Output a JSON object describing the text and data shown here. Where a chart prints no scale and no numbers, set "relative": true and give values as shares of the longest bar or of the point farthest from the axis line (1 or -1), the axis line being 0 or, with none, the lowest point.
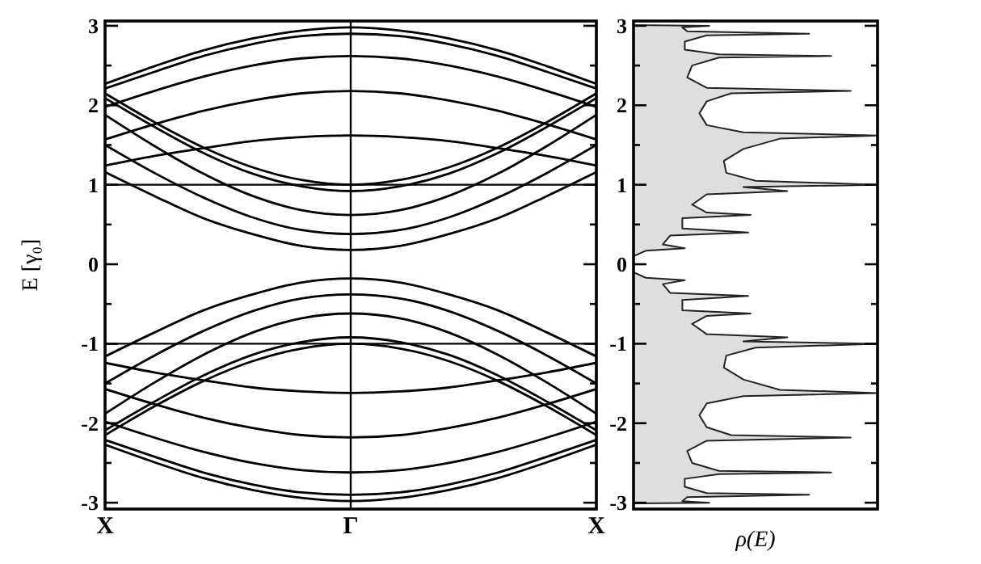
{
  "chart_data": [
    {
      "type": "line",
      "ylabel": "E [γ₀]",
      "ylim": [
        -3.08,
        3.06
      ],
      "categories": [
        "X",
        null,
        null,
        null,
        null,
        "Γ",
        null,
        null,
        null,
        null,
        "X"
      ],
      "yticks": [
        -3,
        {
          "value": -2.5,
          "label": null
        },
        -2,
        {
          "value": -1.5,
          "label": null
        },
        -1,
        {
          "value": -0.5,
          "label": null
        },
        0,
        {
          "value": 0.5,
          "label": null
        },
        1,
        {
          "value": 1.5,
          "label": null
        },
        2,
        {
          "value": 2.5,
          "label": null
        },
        3
      ],
      "ref_lines": [
        {
          "axis": "x",
          "value": "Γ",
          "label": null
        },
        {
          "axis": "y",
          "value": 1,
          "label": null
        },
        {
          "axis": "y",
          "value": -1,
          "label": null
        }
      ],
      "series": [
        {
          "color": "#000000",
          "values": [
            2.27,
            2.49,
            2.69,
            2.84,
            2.94,
            2.98,
            2.94,
            2.84,
            2.69,
            2.49,
            2.27
          ]
        },
        {
          "color": "#000000",
          "values": [
            2.21,
            2.42,
            2.62,
            2.77,
            2.87,
            2.9,
            2.87,
            2.77,
            2.62,
            2.42,
            2.21
          ]
        },
        {
          "color": "#000000",
          "values": [
            1.98,
            2.18,
            2.36,
            2.5,
            2.59,
            2.62,
            2.59,
            2.5,
            2.36,
            2.18,
            1.98
          ]
        },
        {
          "color": "#000000",
          "values": [
            1.57,
            1.76,
            1.93,
            2.06,
            2.15,
            2.18,
            2.15,
            2.06,
            1.93,
            1.76,
            1.57
          ]
        },
        {
          "color": "#000000",
          "values": [
            1.24,
            1.36,
            1.46,
            1.55,
            1.6,
            1.62,
            1.6,
            1.55,
            1.46,
            1.36,
            1.24
          ]
        },
        {
          "color": "#000000",
          "values": [
            2.15,
            1.79,
            1.47,
            1.22,
            1.06,
            1,
            1.06,
            1.22,
            1.47,
            1.79,
            2.15
          ]
        },
        {
          "color": "#000000",
          "values": [
            2.09,
            1.73,
            1.4,
            1.14,
            0.98,
            0.92,
            0.98,
            1.14,
            1.4,
            1.73,
            2.09
          ]
        },
        {
          "color": "#000000",
          "values": [
            1.88,
            1.49,
            1.14,
            0.86,
            0.68,
            0.62,
            0.68,
            0.86,
            1.14,
            1.49,
            1.88
          ]
        },
        {
          "color": "#000000",
          "values": [
            1.5,
            1.15,
            0.84,
            0.59,
            0.43,
            0.38,
            0.43,
            0.59,
            0.84,
            1.15,
            1.5
          ]
        },
        {
          "color": "#000000",
          "values": [
            1.16,
            0.86,
            0.58,
            0.38,
            0.23,
            0.18,
            0.23,
            0.38,
            0.58,
            0.86,
            1.16
          ]
        },
        {
          "color": "#000000",
          "values": [
            -2.27,
            -2.49,
            -2.69,
            -2.84,
            -2.94,
            -2.98,
            -2.94,
            -2.84,
            -2.69,
            -2.49,
            -2.27
          ]
        },
        {
          "color": "#000000",
          "values": [
            -2.21,
            -2.42,
            -2.62,
            -2.77,
            -2.87,
            -2.9,
            -2.87,
            -2.77,
            -2.62,
            -2.42,
            -2.21
          ]
        },
        {
          "color": "#000000",
          "values": [
            -1.98,
            -2.18,
            -2.36,
            -2.5,
            -2.59,
            -2.62,
            -2.59,
            -2.5,
            -2.36,
            -2.18,
            -1.98
          ]
        },
        {
          "color": "#000000",
          "values": [
            -1.57,
            -1.76,
            -1.93,
            -2.06,
            -2.15,
            -2.18,
            -2.15,
            -2.06,
            -1.93,
            -1.76,
            -1.57
          ]
        },
        {
          "color": "#000000",
          "values": [
            -1.24,
            -1.36,
            -1.46,
            -1.55,
            -1.6,
            -1.62,
            -1.6,
            -1.55,
            -1.46,
            -1.36,
            -1.24
          ]
        },
        {
          "color": "#000000",
          "values": [
            -2.15,
            -1.79,
            -1.47,
            -1.22,
            -1.06,
            -1,
            -1.06,
            -1.22,
            -1.47,
            -1.79,
            -2.15
          ]
        },
        {
          "color": "#000000",
          "values": [
            -2.09,
            -1.73,
            -1.4,
            -1.14,
            -0.98,
            -0.92,
            -0.98,
            -1.14,
            -1.4,
            -1.73,
            -2.09
          ]
        },
        {
          "color": "#000000",
          "values": [
            -1.88,
            -1.49,
            -1.14,
            -0.86,
            -0.68,
            -0.62,
            -0.68,
            -0.86,
            -1.14,
            -1.49,
            -1.88
          ]
        },
        {
          "color": "#000000",
          "values": [
            -1.5,
            -1.15,
            -0.84,
            -0.59,
            -0.43,
            -0.38,
            -0.43,
            -0.59,
            -0.84,
            -1.15,
            -1.5
          ]
        },
        {
          "color": "#000000",
          "values": [
            -1.16,
            -0.86,
            -0.58,
            -0.38,
            -0.23,
            -0.18,
            -0.23,
            -0.38,
            -0.58,
            -0.86,
            -1.16
          ]
        }
      ]
    },
    {
      "type": "area",
      "orientation": "horizontal",
      "relative": true,
      "xlabel": "ρ(E)",
      "tick_labels": "y",
      "ylim": [
        -3.08,
        3.06
      ],
      "yticks": [
        -3,
        {
          "value": -2.5,
          "label": null
        },
        -2,
        {
          "value": -1.5,
          "label": null
        },
        -1,
        {
          "value": -0.5,
          "label": null
        },
        0,
        {
          "value": 0.5,
          "label": null
        },
        1,
        {
          "value": 1.5,
          "label": null
        },
        2,
        {
          "value": 2.5,
          "label": null
        },
        3
      ],
      "x": [
        3.06,
        3.01,
        3,
        2.98,
        2.93,
        2.9,
        2.88,
        2.8,
        2.7,
        2.64,
        2.62,
        2.6,
        2.5,
        2.35,
        2.22,
        2.18,
        2.15,
        2.05,
        1.9,
        1.75,
        1.66,
        1.62,
        1.58,
        1.45,
        1.3,
        1.15,
        1.05,
        1,
        0.97,
        0.92,
        0.88,
        0.75,
        0.65,
        0.62,
        0.58,
        0.45,
        0.4,
        0.36,
        0.25,
        0.2,
        0.17,
        0.1,
        0,
        -0.1,
        -0.17,
        -0.2,
        -0.25,
        -0.36,
        -0.4,
        -0.45,
        -0.58,
        -0.62,
        -0.65,
        -0.75,
        -0.88,
        -0.92,
        -0.97,
        -1,
        -1.05,
        -1.15,
        -1.3,
        -1.45,
        -1.58,
        -1.62,
        -1.66,
        -1.75,
        -1.9,
        -2.05,
        -2.15,
        -2.18,
        -2.22,
        -2.35,
        -2.5,
        -2.6,
        -2.62,
        -2.64,
        -2.7,
        -2.8,
        -2.88,
        -2.9,
        -2.93,
        -2.98,
        -3,
        -3.01,
        -3.08
      ],
      "series": [
        {
          "color": "#dedede",
          "values": [
            0,
            0,
            0.31,
            0.2,
            0.22,
            0.72,
            0.3,
            0.21,
            0.21,
            0.35,
            0.81,
            0.35,
            0.24,
            0.22,
            0.3,
            0.89,
            0.4,
            0.3,
            0.27,
            0.3,
            0.45,
            1,
            0.6,
            0.45,
            0.37,
            0.38,
            0.5,
            1,
            0.45,
            0.63,
            0.3,
            0.24,
            0.3,
            0.48,
            0.2,
            0.2,
            0.47,
            0.15,
            0.12,
            0.21,
            0.05,
            0,
            0,
            0,
            0.05,
            0.21,
            0.12,
            0.15,
            0.47,
            0.2,
            0.2,
            0.48,
            0.3,
            0.24,
            0.3,
            0.63,
            0.45,
            1,
            0.5,
            0.38,
            0.37,
            0.45,
            0.6,
            1,
            0.45,
            0.3,
            0.27,
            0.3,
            0.4,
            0.89,
            0.3,
            0.22,
            0.24,
            0.35,
            0.81,
            0.35,
            0.21,
            0.21,
            0.3,
            0.72,
            0.22,
            0.2,
            0.31,
            0,
            0
          ]
        }
      ]
    }
  ]
}
